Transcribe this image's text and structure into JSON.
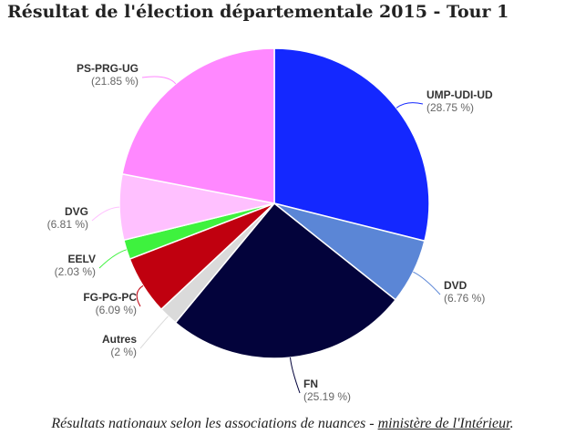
{
  "title": "Résultat de l'élection départementale 2015 - Tour 1",
  "caption": {
    "text": "Résultats nationaux selon les associations de nuances - ",
    "link": "ministère de l'Intérieur",
    "end": "."
  },
  "chart_data": {
    "type": "pie",
    "title": "Résultat de l'élection départementale 2015 - Tour 1",
    "start_angle_deg": 0,
    "direction": "clockwise",
    "slices": [
      {
        "name": "UMP-UDI-UD",
        "value": 28.75,
        "label": "(28.75 %)",
        "color": "#1428ff"
      },
      {
        "name": "DVD",
        "value": 6.76,
        "label": "(6.76 %)",
        "color": "#5b86d6"
      },
      {
        "name": "FN",
        "value": 25.19,
        "label": "(25.19 %)",
        "color": "#03033b"
      },
      {
        "name": "Autres",
        "value": 2,
        "label": "(2 %)",
        "color": "#dadada"
      },
      {
        "name": "FG-PG-PC",
        "value": 6.09,
        "label": "(6.09 %)",
        "color": "#c0000f"
      },
      {
        "name": "EELV",
        "value": 2.03,
        "label": "(2.03 %)",
        "color": "#3ef23e"
      },
      {
        "name": "DVG",
        "value": 6.81,
        "label": "(6.81 %)",
        "color": "#ffc0ff"
      },
      {
        "name": "PS-PRG-UG",
        "value": 21.85,
        "label": "(21.85 %)",
        "color": "#ff88ff"
      }
    ]
  }
}
